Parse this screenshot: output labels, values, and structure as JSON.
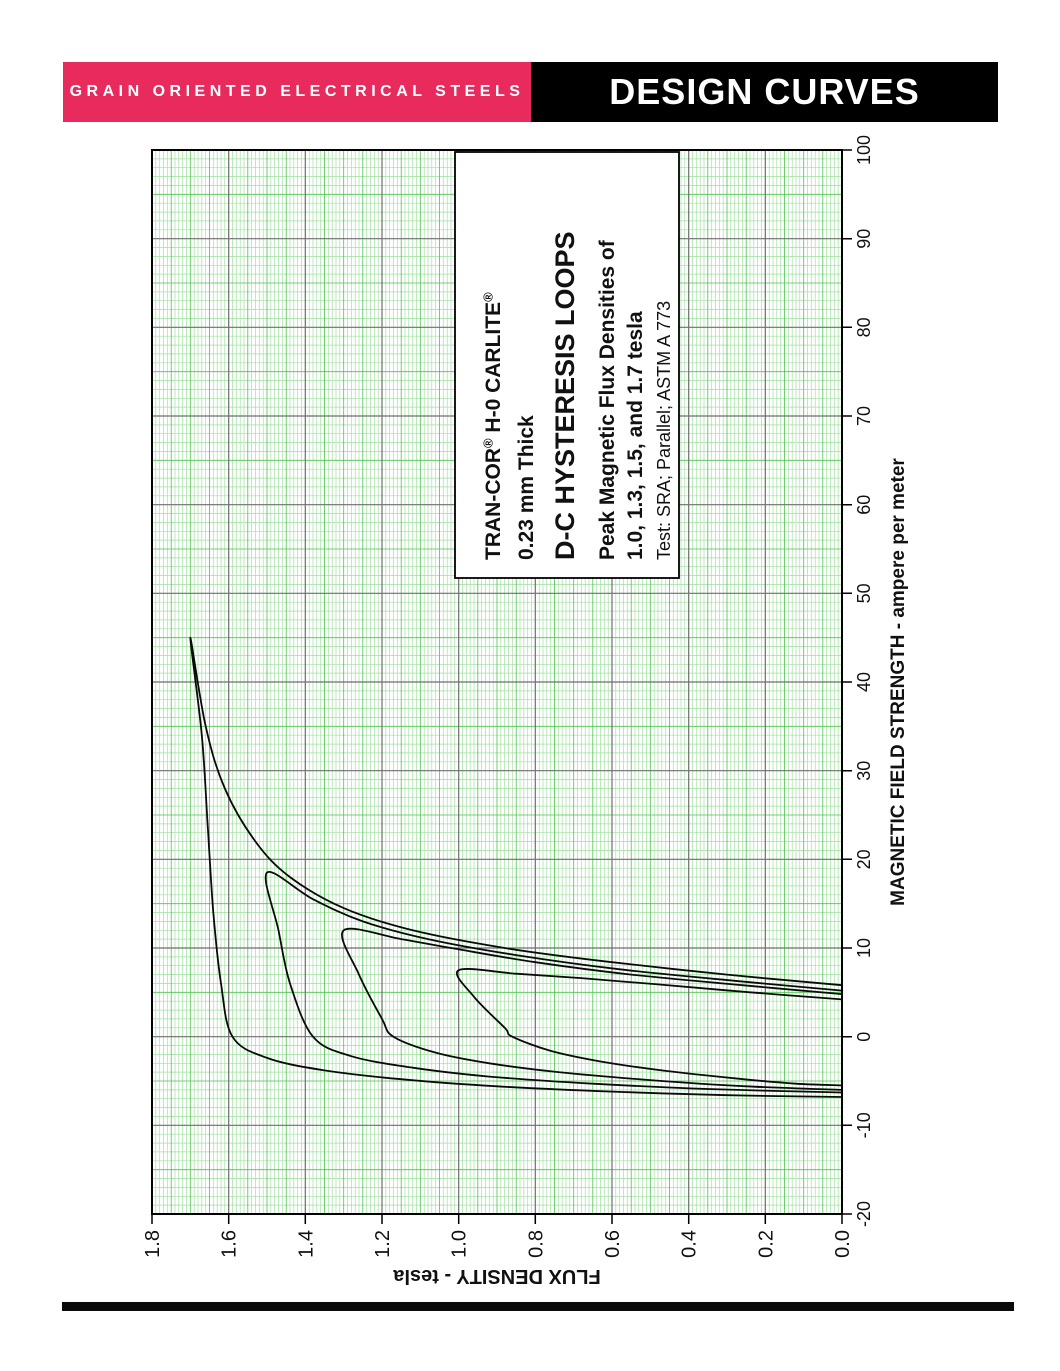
{
  "header": {
    "left_banner": "GRAIN ORIENTED ELECTRICAL STEELS",
    "left_banner_color": "#e82a5c",
    "right_banner": "DESIGN CURVES",
    "right_banner_color": "#000000"
  },
  "footer": {
    "rule_color": "#0a0a0a"
  },
  "chart_data": {
    "type": "line",
    "orientation": "page rotated 90deg CCW (H axis vertical, B axis horizontal)",
    "title_block": {
      "lines": [
        {
          "text": "TRAN-COR® H-0 CARLITE®",
          "bold": true,
          "size": 21
        },
        {
          "text": "0.23 mm Thick",
          "bold": true,
          "size": 21
        },
        {
          "text": "D-C HYSTERESIS LOOPS",
          "bold": true,
          "size": 27
        },
        {
          "text": "Peak Magnetic Flux Densities of",
          "bold": true,
          "size": 21
        },
        {
          "text": "1.0, 1.3, 1.5, and 1.7 tesla",
          "bold": true,
          "size": 21
        },
        {
          "text": "Test: SRA; Parallel; ASTM A 773",
          "bold": false,
          "size": 18
        }
      ]
    },
    "x_axis": {
      "label": "MAGNETIC FIELD STRENGTH - ampere per meter",
      "min": -20,
      "max": 100,
      "major_tick_step": 10,
      "minor_division": 1,
      "medium_division": 5,
      "tick_labels": [
        "-20",
        "-10",
        "0",
        "10",
        "20",
        "30",
        "40",
        "50",
        "60",
        "70",
        "80",
        "90",
        "100"
      ]
    },
    "y_axis": {
      "label": "FLUX DENSITY - tesla",
      "min": 0,
      "max": 1.8,
      "major_tick_step": 0.2,
      "minor_division": 0.01,
      "medium_division": 0.05,
      "tick_labels": [
        "0.0",
        "0.2",
        "0.4",
        "0.6",
        "0.8",
        "1.0",
        "1.2",
        "1.4",
        "1.6",
        "1.8"
      ]
    },
    "grid": {
      "fine_color": "#a0e0a0",
      "medium_color": "#4cc44c",
      "major_color": "#6e6e6e",
      "background": "#ffffff",
      "border_color": "#000000"
    },
    "curve_color": "#0a0a0a",
    "series": [
      {
        "name": "1.0 tesla loop",
        "peak": {
          "h": 7.5,
          "b": 1.0
        },
        "ascending": [
          [
            4.2,
            0
          ],
          [
            5.0,
            0.24
          ],
          [
            5.9,
            0.48
          ],
          [
            6.6,
            0.68
          ],
          [
            7.1,
            0.85
          ],
          [
            7.5,
            1.0
          ]
        ],
        "descending": [
          [
            7.5,
            1.0
          ],
          [
            4.5,
            0.96
          ],
          [
            1.0,
            0.88
          ],
          [
            0,
            0.86
          ],
          [
            -1.6,
            0.76
          ],
          [
            -2.8,
            0.63
          ],
          [
            -3.8,
            0.47
          ],
          [
            -4.7,
            0.28
          ],
          [
            -5.3,
            0.12
          ],
          [
            -5.5,
            0
          ]
        ]
      },
      {
        "name": "1.3 tesla loop",
        "peak": {
          "h": 12,
          "b": 1.3
        },
        "ascending": [
          [
            4.8,
            0
          ],
          [
            5.8,
            0.26
          ],
          [
            7.0,
            0.55
          ],
          [
            8.4,
            0.8
          ],
          [
            10.0,
            1.02
          ],
          [
            11.0,
            1.15
          ],
          [
            12,
            1.3
          ]
        ],
        "descending": [
          [
            12,
            1.3
          ],
          [
            7.0,
            1.26
          ],
          [
            2.0,
            1.2
          ],
          [
            0,
            1.17
          ],
          [
            -1.8,
            1.06
          ],
          [
            -3.0,
            0.92
          ],
          [
            -4.0,
            0.74
          ],
          [
            -4.9,
            0.5
          ],
          [
            -5.6,
            0.25
          ],
          [
            -6.0,
            0
          ]
        ]
      },
      {
        "name": "1.5 tesla loop",
        "peak": {
          "h": 18.5,
          "b": 1.5
        },
        "ascending": [
          [
            5.2,
            0
          ],
          [
            6.3,
            0.28
          ],
          [
            7.6,
            0.58
          ],
          [
            9.2,
            0.85
          ],
          [
            11.0,
            1.08
          ],
          [
            13.0,
            1.25
          ],
          [
            15.5,
            1.38
          ],
          [
            18.5,
            1.5
          ]
        ],
        "descending": [
          [
            18.5,
            1.5
          ],
          [
            12.0,
            1.47
          ],
          [
            6.0,
            1.44
          ],
          [
            0,
            1.38
          ],
          [
            -2.2,
            1.28
          ],
          [
            -3.5,
            1.12
          ],
          [
            -4.5,
            0.92
          ],
          [
            -5.3,
            0.65
          ],
          [
            -5.9,
            0.35
          ],
          [
            -6.3,
            0
          ]
        ]
      },
      {
        "name": "1.7 tesla loop",
        "peak": {
          "h": 45,
          "b": 1.7
        },
        "ascending": [
          [
            5.8,
            0
          ],
          [
            7.0,
            0.3
          ],
          [
            8.5,
            0.62
          ],
          [
            10.0,
            0.88
          ],
          [
            12.0,
            1.12
          ],
          [
            14.5,
            1.3
          ],
          [
            18.0,
            1.44
          ],
          [
            22.0,
            1.53
          ],
          [
            28.0,
            1.61
          ],
          [
            35.0,
            1.66
          ],
          [
            45,
            1.7
          ]
        ],
        "descending": [
          [
            45,
            1.7
          ],
          [
            34.0,
            1.67
          ],
          [
            24.0,
            1.655
          ],
          [
            14.0,
            1.64
          ],
          [
            6.0,
            1.62
          ],
          [
            0,
            1.59
          ],
          [
            -2.4,
            1.5
          ],
          [
            -3.8,
            1.35
          ],
          [
            -4.8,
            1.15
          ],
          [
            -5.6,
            0.9
          ],
          [
            -6.2,
            0.6
          ],
          [
            -6.6,
            0.3
          ],
          [
            -6.8,
            0
          ]
        ]
      }
    ]
  }
}
